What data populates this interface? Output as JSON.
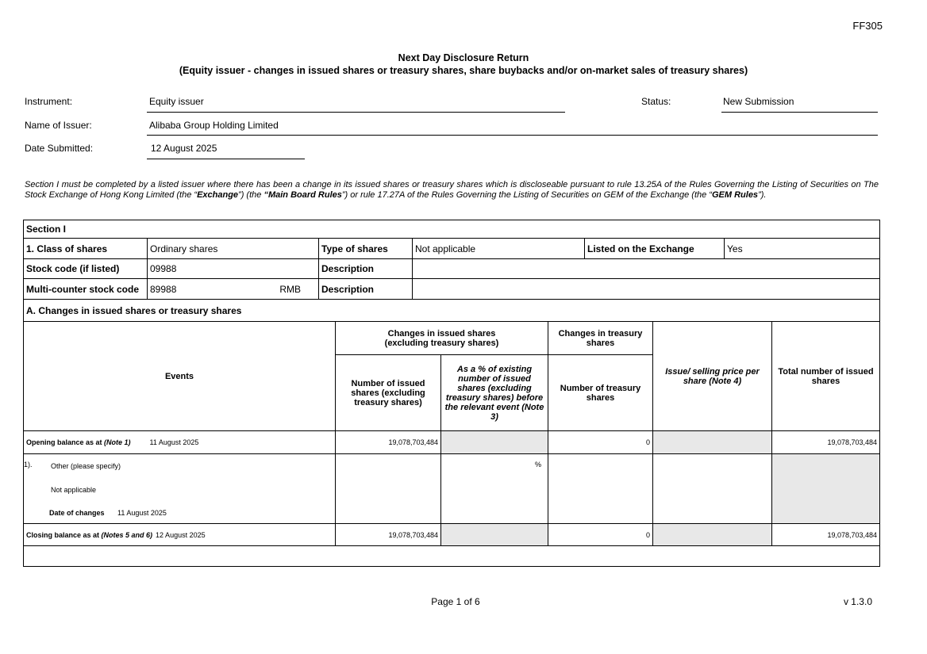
{
  "form_code": "FF305",
  "title": "Next Day Disclosure Return",
  "subtitle": "(Equity issuer - changes in issued shares or treasury shares, share buybacks and/or on-market sales of treasury shares)",
  "fields": {
    "instrument_label": "Instrument:",
    "instrument_value": "Equity issuer",
    "status_label": "Status:",
    "status_value": "New Submission",
    "issuer_label": "Name of Issuer:",
    "issuer_value": "Alibaba Group Holding Limited",
    "date_label": "Date Submitted:",
    "date_value": "12 August 2025"
  },
  "intro": {
    "p1": "Section I must be completed by a listed issuer where there has been a change in its issued shares or treasury shares which is discloseable pursuant to rule 13.25A of the Rules Governing the Listing of Securities on The Stock Exchange of Hong Kong Limited (the “",
    "exchange": "Exchange",
    "p2": "”) (the ",
    "mbr": "“Main Board Rules",
    "p3": "”) or rule 17.27A of the Rules Governing the Listing of Securities on GEM of the Exchange (the “",
    "gem": "GEM Rules",
    "p4": "”)."
  },
  "section": {
    "title": "Section I",
    "class_label": "1. Class of shares",
    "class_value": "Ordinary shares",
    "type_label": "Type of shares",
    "type_value": "Not applicable",
    "listed_label": "Listed on the Exchange",
    "listed_value": "Yes",
    "stock_code_label": "Stock code (if listed)",
    "stock_code_value": "09988",
    "description_label": "Description",
    "multi_label": "Multi-counter stock code",
    "multi_value": "89988",
    "multi_currency": "RMB",
    "a_title": "A. Changes in issued shares or treasury shares"
  },
  "table": {
    "events": "Events",
    "issued_group": "Changes in issued shares (excluding treasury shares)",
    "treasury_group": "Changes in treasury shares",
    "col_issued": "Number of issued shares (excluding treasury shares)",
    "col_pct": "As a % of existing number of issued shares (excluding treasury shares) before the relevant event (Note 3)",
    "col_treasury": "Number of treasury shares",
    "col_price": "Issue/ selling price per share (Note 4)",
    "col_total": "Total number of issued shares",
    "opening": {
      "label": "Opening balance as at ",
      "note": "(Note 1)",
      "date": "11 August 2025",
      "issued": "19,078,703,484",
      "treasury": "0",
      "total": "19,078,703,484"
    },
    "event": {
      "num": "1).",
      "type": "Other (please specify)",
      "detail": "Not applicable",
      "date_label": "Date of changes",
      "date": "11 August 2025",
      "pct": "%"
    },
    "closing": {
      "label": "Closing balance as at ",
      "note": "(Notes 5 and 6)",
      "date": "12 August 2025",
      "issued": "19,078,703,484",
      "treasury": "0",
      "total": "19,078,703,484"
    }
  },
  "footer": {
    "page": "Page 1 of 6",
    "version": "v 1.3.0"
  }
}
